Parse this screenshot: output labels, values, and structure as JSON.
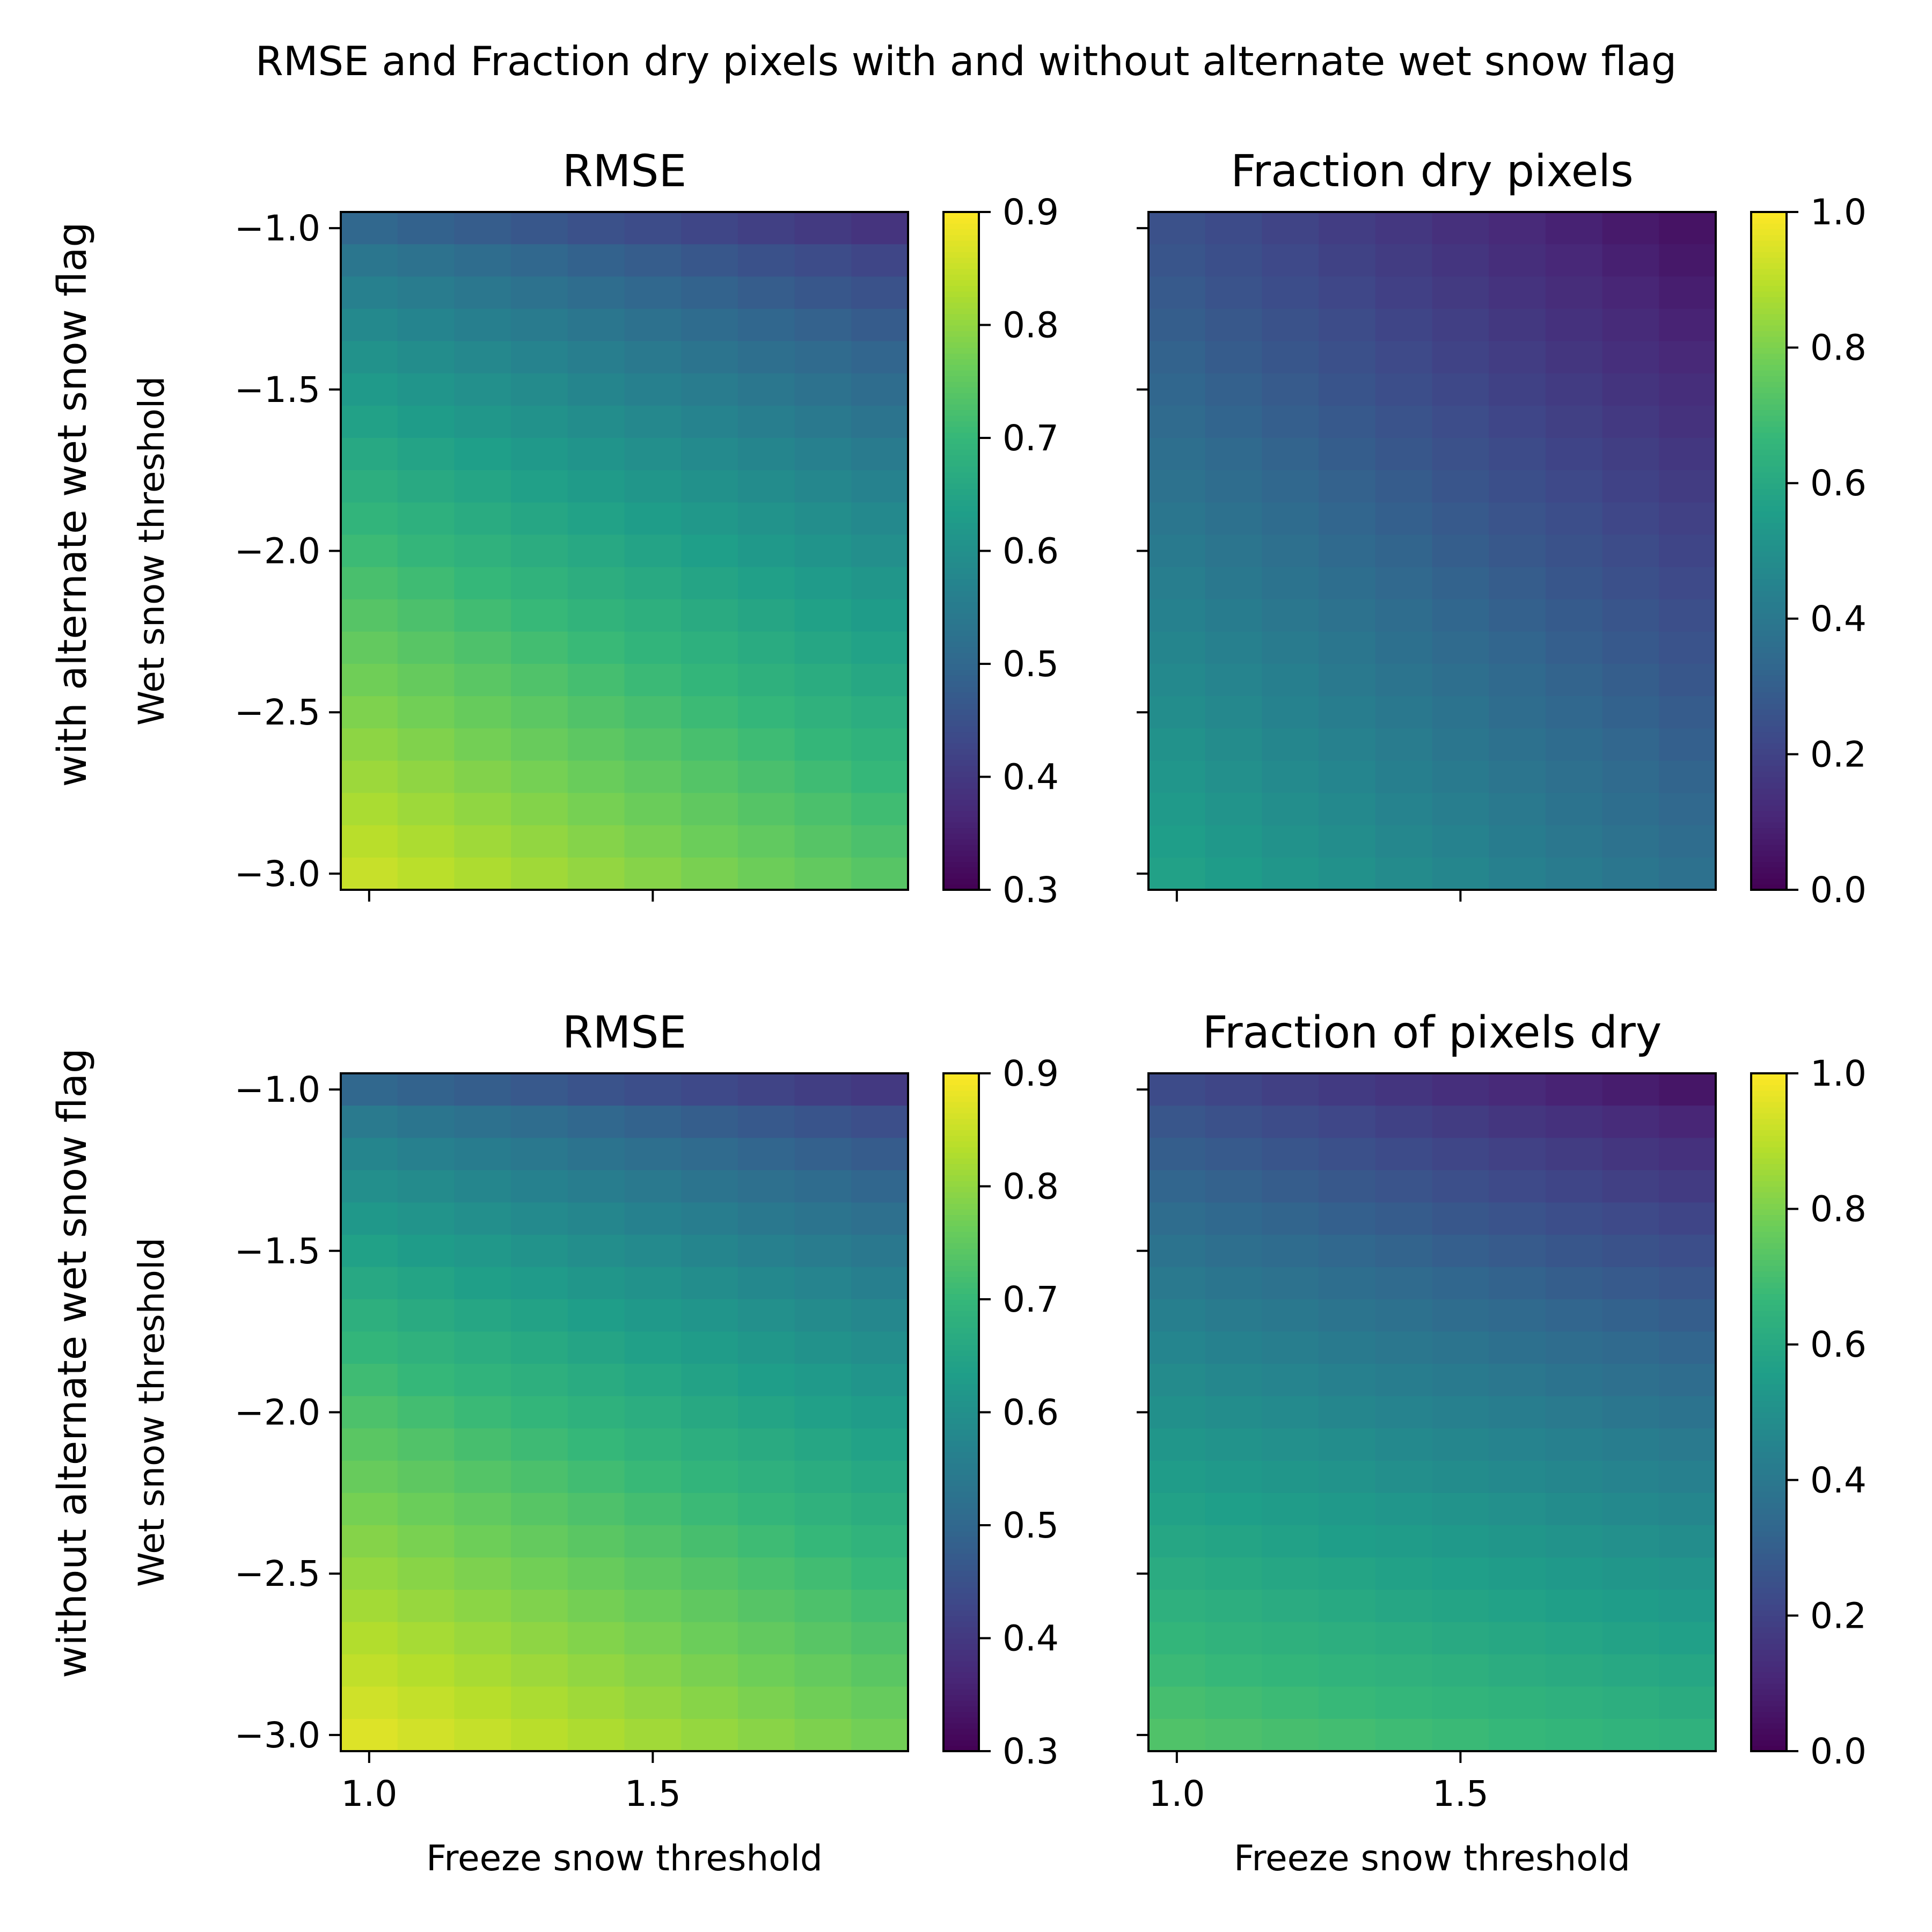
{
  "figure": {
    "title": "RMSE and Fraction dry pixels with and without alternate wet snow flag",
    "row_labels": [
      "with alternate wet snow flag",
      "without alternate wet snow flag"
    ]
  },
  "colormap": {
    "name": "viridis",
    "stops": [
      "#440154",
      "#482878",
      "#3e4989",
      "#31688e",
      "#26828e",
      "#1f9e89",
      "#35b779",
      "#6ece58",
      "#b5de2b",
      "#fde725"
    ]
  },
  "chart_data": [
    {
      "type": "heatmap",
      "title": "RMSE",
      "xlabel": "",
      "ylabel": "Wet snow threshold",
      "x": [
        1.0,
        1.1,
        1.2,
        1.3,
        1.4,
        1.5,
        1.6,
        1.7,
        1.8,
        1.9
      ],
      "y": [
        -1.0,
        -1.1,
        -1.2,
        -1.3,
        -1.4,
        -1.5,
        -1.6,
        -1.7,
        -1.8,
        -1.9,
        -2.0,
        -2.1,
        -2.2,
        -2.3,
        -2.4,
        -2.5,
        -2.6,
        -2.7,
        -2.8,
        -2.9,
        -3.0
      ],
      "xticks": [
        1.0,
        1.5
      ],
      "xtick_labels": [
        "",
        ""
      ],
      "yticks": [
        -1.0,
        -1.5,
        -2.0,
        -2.5,
        -3.0
      ],
      "ytick_labels": [
        "−1.0",
        "−1.5",
        "−2.0",
        "−2.5",
        "−3.0"
      ],
      "clim": [
        0.3,
        0.9
      ],
      "colorbar_ticks": [
        0.3,
        0.4,
        0.5,
        0.6,
        0.7,
        0.8,
        0.9
      ],
      "colorbar_tick_labels": [
        "0.3",
        "0.4",
        "0.5",
        "0.6",
        "0.7",
        "0.8",
        "0.9"
      ],
      "corners": {
        "top_left": 0.5,
        "top_right": 0.39,
        "bottom_left": 0.85,
        "bottom_right": 0.74
      },
      "gamma": 0.75
    },
    {
      "type": "heatmap",
      "title": "Fraction dry pixels",
      "xlabel": "",
      "ylabel": "",
      "x": [
        1.0,
        1.1,
        1.2,
        1.3,
        1.4,
        1.5,
        1.6,
        1.7,
        1.8,
        1.9
      ],
      "y": [
        -1.0,
        -1.1,
        -1.2,
        -1.3,
        -1.4,
        -1.5,
        -1.6,
        -1.7,
        -1.8,
        -1.9,
        -2.0,
        -2.1,
        -2.2,
        -2.3,
        -2.4,
        -2.5,
        -2.6,
        -2.7,
        -2.8,
        -2.9,
        -3.0
      ],
      "xticks": [
        1.0,
        1.5
      ],
      "xtick_labels": [
        "",
        ""
      ],
      "yticks": [
        -1.0,
        -1.5,
        -2.0,
        -2.5,
        -3.0
      ],
      "ytick_labels": [
        "",
        "",
        "",
        "",
        ""
      ],
      "clim": [
        0.0,
        1.0
      ],
      "colorbar_ticks": [
        0.0,
        0.2,
        0.4,
        0.6,
        0.8,
        1.0
      ],
      "colorbar_tick_labels": [
        "0.0",
        "0.2",
        "0.4",
        "0.6",
        "0.8",
        "1.0"
      ],
      "corners": {
        "top_left": 0.25,
        "top_right": 0.05,
        "bottom_left": 0.57,
        "bottom_right": 0.37
      },
      "gamma": 1.0
    },
    {
      "type": "heatmap",
      "title": "RMSE",
      "xlabel": "Freeze snow threshold",
      "ylabel": "Wet snow threshold",
      "x": [
        1.0,
        1.1,
        1.2,
        1.3,
        1.4,
        1.5,
        1.6,
        1.7,
        1.8,
        1.9
      ],
      "y": [
        -1.0,
        -1.1,
        -1.2,
        -1.3,
        -1.4,
        -1.5,
        -1.6,
        -1.7,
        -1.8,
        -1.9,
        -2.0,
        -2.1,
        -2.2,
        -2.3,
        -2.4,
        -2.5,
        -2.6,
        -2.7,
        -2.8,
        -2.9,
        -3.0
      ],
      "xticks": [
        1.0,
        1.5
      ],
      "xtick_labels": [
        "1.0",
        "1.5"
      ],
      "yticks": [
        -1.0,
        -1.5,
        -2.0,
        -2.5,
        -3.0
      ],
      "ytick_labels": [
        "−1.0",
        "−1.5",
        "−2.0",
        "−2.5",
        "−3.0"
      ],
      "clim": [
        0.3,
        0.9
      ],
      "colorbar_ticks": [
        0.3,
        0.4,
        0.5,
        0.6,
        0.7,
        0.8,
        0.9
      ],
      "colorbar_tick_labels": [
        "0.3",
        "0.4",
        "0.5",
        "0.6",
        "0.7",
        "0.8",
        "0.9"
      ],
      "corners": {
        "top_left": 0.5,
        "top_right": 0.4,
        "bottom_left": 0.87,
        "bottom_right": 0.77
      },
      "gamma": 0.7
    },
    {
      "type": "heatmap",
      "title": "Fraction of pixels dry",
      "xlabel": "Freeze snow threshold",
      "ylabel": "",
      "x": [
        1.0,
        1.1,
        1.2,
        1.3,
        1.4,
        1.5,
        1.6,
        1.7,
        1.8,
        1.9
      ],
      "y": [
        -1.0,
        -1.1,
        -1.2,
        -1.3,
        -1.4,
        -1.5,
        -1.6,
        -1.7,
        -1.8,
        -1.9,
        -2.0,
        -2.1,
        -2.2,
        -2.3,
        -2.4,
        -2.5,
        -2.6,
        -2.7,
        -2.8,
        -2.9,
        -3.0
      ],
      "xticks": [
        1.0,
        1.5
      ],
      "xtick_labels": [
        "1.0",
        "1.5"
      ],
      "yticks": [
        -1.0,
        -1.5,
        -2.0,
        -2.5,
        -3.0
      ],
      "ytick_labels": [
        "",
        "",
        "",
        "",
        ""
      ],
      "clim": [
        0.0,
        1.0
      ],
      "colorbar_ticks": [
        0.0,
        0.2,
        0.4,
        0.6,
        0.8,
        1.0
      ],
      "colorbar_tick_labels": [
        "0.0",
        "0.2",
        "0.4",
        "0.6",
        "0.8",
        "1.0"
      ],
      "corners": {
        "top_left": 0.23,
        "top_right": 0.06,
        "bottom_left": 0.72,
        "bottom_right": 0.64
      },
      "gamma": 0.85
    }
  ]
}
